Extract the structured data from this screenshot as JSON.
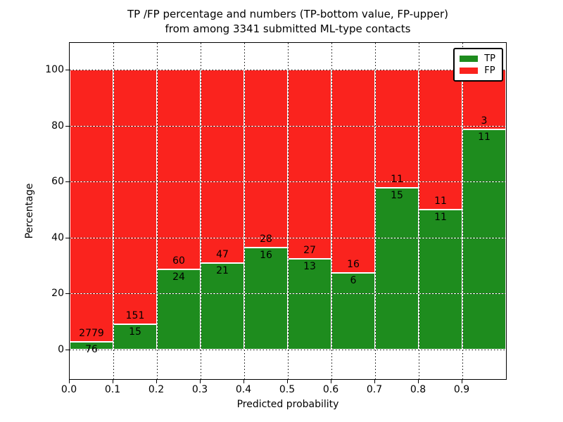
{
  "title": {
    "line1": "TP /FP percentage and numbers (TP-bottom value, FP-upper)",
    "line2": "from among 3341 submitted ML-type contacts"
  },
  "axes": {
    "xlabel": "Predicted probability",
    "ylabel": "Percentage",
    "x_tick_labels": [
      "0.0",
      "0.1",
      "0.2",
      "0.3",
      "0.4",
      "0.5",
      "0.6",
      "0.7",
      "0.8",
      "0.9"
    ],
    "y_tick_labels": [
      "0",
      "20",
      "40",
      "60",
      "80",
      "100"
    ],
    "y_tick_values": [
      0,
      20,
      40,
      60,
      80,
      100
    ],
    "xlim": [
      0.0,
      1.0
    ],
    "ylim": [
      0,
      100
    ],
    "grid": true
  },
  "legend": {
    "position": "upper right",
    "items": [
      {
        "label": "TP",
        "color": "#1e8c1e"
      },
      {
        "label": "FP",
        "color": "#fa231e"
      }
    ]
  },
  "colors": {
    "tp_green": "#1e8c1e",
    "fp_red": "#fa231e",
    "bar_edge": "#ffffff",
    "grid_dot": "#000000"
  },
  "chart_data": {
    "type": "bar",
    "stacked": true,
    "normalized_to_percent": true,
    "title": "TP /FP percentage and numbers (TP-bottom value, FP-upper) from among 3341 submitted ML-type contacts",
    "xlabel": "Predicted probability",
    "ylabel": "Percentage",
    "total_contacts": 3341,
    "categories": [
      "0.0-0.1",
      "0.1-0.2",
      "0.2-0.3",
      "0.3-0.4",
      "0.4-0.5",
      "0.5-0.6",
      "0.6-0.7",
      "0.7-0.8",
      "0.8-0.9",
      "0.9-1.0"
    ],
    "series": [
      {
        "name": "TP",
        "color": "#1e8c1e",
        "counts": [
          76,
          15,
          24,
          21,
          16,
          13,
          6,
          15,
          11,
          11
        ]
      },
      {
        "name": "FP",
        "color": "#fa231e",
        "counts": [
          2779,
          151,
          60,
          47,
          28,
          27,
          16,
          11,
          11,
          3
        ]
      }
    ],
    "tp_percent": [
      2.66,
      9.04,
      28.57,
      30.88,
      36.36,
      32.5,
      27.27,
      57.69,
      50.0,
      78.57
    ],
    "fp_percent": [
      97.34,
      90.96,
      71.43,
      69.12,
      63.64,
      67.5,
      72.73,
      42.31,
      50.0,
      21.43
    ],
    "ylim": [
      0,
      100
    ],
    "grid": true,
    "legend_position": "upper right"
  }
}
